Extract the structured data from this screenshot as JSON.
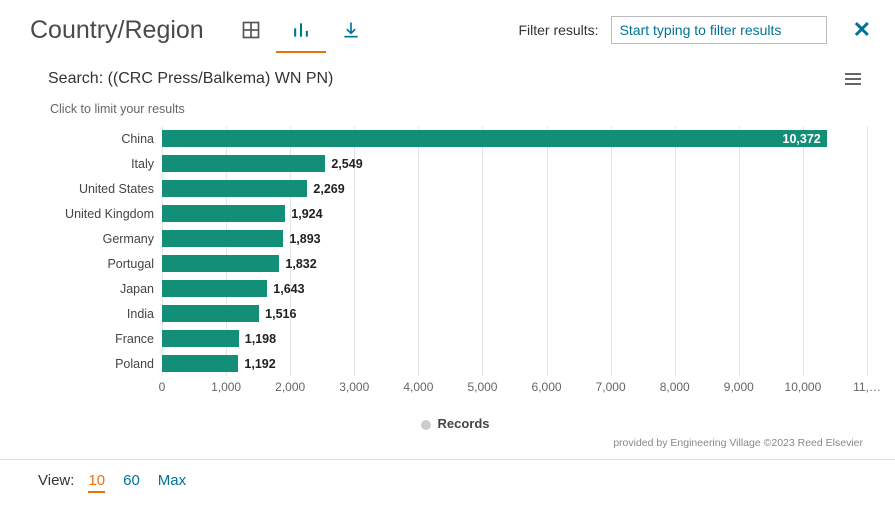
{
  "header": {
    "title": "Country/Region",
    "filter_label": "Filter results:",
    "filter_placeholder": "Start typing to filter results"
  },
  "chart": {
    "type": "bar-horizontal",
    "title": "Search: ((CRC Press/Balkema) WN PN)",
    "subtitle": "Click to limit your results",
    "bar_color": "#148f77",
    "grid_color": "#e5e5e5",
    "background_color": "#ffffff",
    "x_axis": {
      "min": 0,
      "max": 11000,
      "tick_step": 1000,
      "ticks": [
        "0",
        "1,000",
        "2,000",
        "3,000",
        "4,000",
        "5,000",
        "6,000",
        "7,000",
        "8,000",
        "9,000",
        "10,000",
        "11,…"
      ]
    },
    "categories": [
      "China",
      "Italy",
      "United States",
      "United Kingdom",
      "Germany",
      "Portugal",
      "Japan",
      "India",
      "France",
      "Poland"
    ],
    "values": [
      10372,
      2549,
      2269,
      1924,
      1893,
      1832,
      1643,
      1516,
      1198,
      1192
    ],
    "display_values": [
      "10,372",
      "2,549",
      "2,269",
      "1,924",
      "1,893",
      "1,832",
      "1,643",
      "1,516",
      "1,198",
      "1,192"
    ],
    "legend": "Records"
  },
  "credit": "provided by Engineering Village ©2023 Reed Elsevier",
  "footer": {
    "label": "View:",
    "options": [
      "10",
      "60",
      "Max"
    ],
    "active": "10"
  }
}
